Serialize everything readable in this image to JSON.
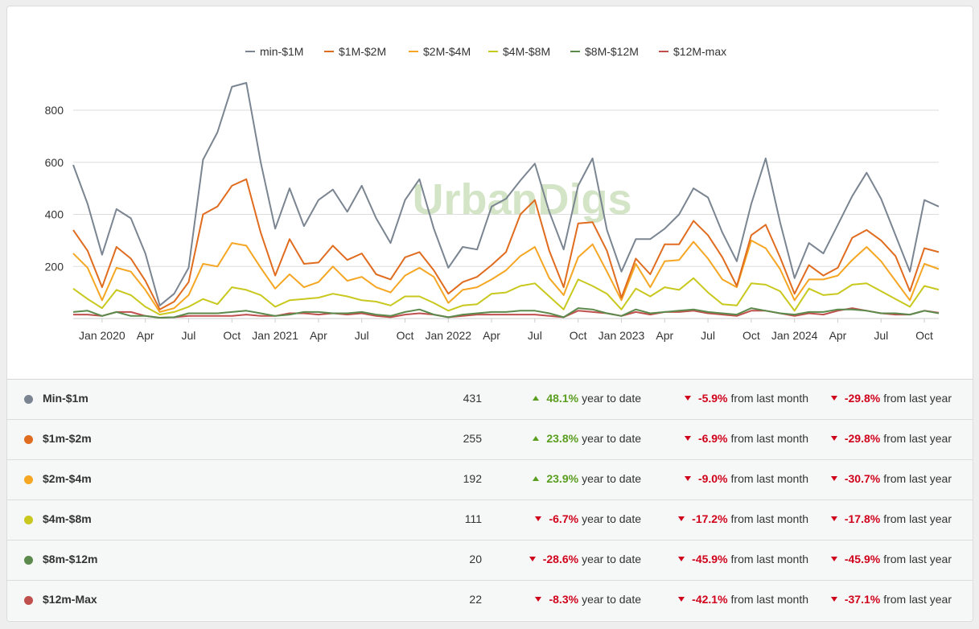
{
  "chart_data": {
    "type": "line",
    "watermark": "UrbanDigs",
    "x": [
      "2019-11",
      "2019-12",
      "2020-01",
      "2020-02",
      "2020-03",
      "2020-04",
      "2020-05",
      "2020-06",
      "2020-07",
      "2020-08",
      "2020-09",
      "2020-10",
      "2020-11",
      "2020-12",
      "2021-01",
      "2021-02",
      "2021-03",
      "2021-04",
      "2021-05",
      "2021-06",
      "2021-07",
      "2021-08",
      "2021-09",
      "2021-10",
      "2021-11",
      "2021-12",
      "2022-01",
      "2022-02",
      "2022-03",
      "2022-04",
      "2022-05",
      "2022-06",
      "2022-07",
      "2022-08",
      "2022-09",
      "2022-10",
      "2022-11",
      "2022-12",
      "2023-01",
      "2023-02",
      "2023-03",
      "2023-04",
      "2023-05",
      "2023-06",
      "2023-07",
      "2023-08",
      "2023-09",
      "2023-10",
      "2023-11",
      "2023-12",
      "2024-01",
      "2024-02",
      "2024-03",
      "2024-04",
      "2024-05",
      "2024-06",
      "2024-07",
      "2024-08",
      "2024-09",
      "2024-10",
      "2024-11"
    ],
    "x_ticks": [
      "Jan 2020",
      "Apr",
      "Jul",
      "Oct",
      "Jan 2021",
      "Apr",
      "Jul",
      "Oct",
      "Jan 2022",
      "Apr",
      "Jul",
      "Oct",
      "Jan 2023",
      "Apr",
      "Jul",
      "Oct",
      "Jan 2024",
      "Apr",
      "Jul",
      "Oct"
    ],
    "y_ticks": [
      200,
      400,
      600,
      800
    ],
    "ylim": [
      0,
      900
    ],
    "legend_position": "top",
    "series": [
      {
        "name": "min-$1M",
        "color": "#7a8591",
        "values": [
          590,
          440,
          245,
          420,
          385,
          250,
          50,
          95,
          195,
          610,
          715,
          890,
          905,
          600,
          345,
          500,
          355,
          455,
          495,
          410,
          510,
          385,
          290,
          455,
          535,
          345,
          195,
          275,
          265,
          430,
          460,
          530,
          595,
          410,
          265,
          510,
          615,
          340,
          180,
          305,
          305,
          345,
          400,
          500,
          465,
          330,
          220,
          440,
          615,
          370,
          155,
          290,
          250,
          360,
          470,
          560,
          460,
          320,
          180,
          455,
          430
        ]
      },
      {
        "name": "$1M-$2M",
        "color": "#e06c1f",
        "values": [
          340,
          260,
          120,
          275,
          230,
          145,
          35,
          65,
          140,
          400,
          430,
          510,
          535,
          330,
          165,
          305,
          210,
          215,
          280,
          225,
          250,
          170,
          150,
          235,
          255,
          185,
          95,
          140,
          160,
          205,
          255,
          400,
          455,
          260,
          120,
          365,
          370,
          260,
          80,
          230,
          170,
          285,
          285,
          375,
          320,
          235,
          125,
          320,
          360,
          235,
          95,
          205,
          165,
          195,
          310,
          340,
          300,
          240,
          105,
          270,
          255
        ]
      },
      {
        "name": "$2M-$4M",
        "color": "#f5a623",
        "values": [
          250,
          195,
          70,
          195,
          180,
          110,
          25,
          40,
          90,
          210,
          200,
          290,
          280,
          195,
          115,
          170,
          120,
          140,
          200,
          145,
          160,
          120,
          100,
          165,
          195,
          160,
          60,
          110,
          120,
          150,
          185,
          240,
          275,
          155,
          90,
          235,
          285,
          180,
          70,
          210,
          120,
          220,
          225,
          295,
          230,
          150,
          120,
          300,
          270,
          190,
          70,
          150,
          150,
          165,
          225,
          275,
          220,
          145,
          70,
          210,
          190
        ]
      },
      {
        "name": "$4M-$8M",
        "color": "#c8c81e",
        "values": [
          115,
          75,
          40,
          110,
          90,
          45,
          15,
          25,
          45,
          75,
          55,
          120,
          110,
          90,
          45,
          70,
          75,
          80,
          95,
          85,
          70,
          65,
          50,
          85,
          85,
          60,
          30,
          50,
          55,
          95,
          100,
          125,
          135,
          85,
          35,
          150,
          125,
          95,
          35,
          115,
          85,
          120,
          110,
          155,
          100,
          55,
          50,
          135,
          130,
          105,
          30,
          115,
          90,
          95,
          130,
          135,
          105,
          75,
          45,
          125,
          111
        ]
      },
      {
        "name": "$8M-$12M",
        "color": "#5b8a4c",
        "values": [
          25,
          30,
          10,
          25,
          10,
          10,
          3,
          5,
          20,
          20,
          20,
          25,
          30,
          20,
          10,
          15,
          25,
          25,
          20,
          20,
          25,
          15,
          10,
          25,
          35,
          15,
          5,
          15,
          20,
          25,
          25,
          30,
          30,
          20,
          5,
          40,
          35,
          20,
          10,
          35,
          20,
          25,
          30,
          35,
          25,
          20,
          15,
          40,
          30,
          20,
          15,
          25,
          25,
          35,
          35,
          30,
          20,
          20,
          15,
          30,
          20
        ]
      },
      {
        "name": "$12M-max",
        "color": "#c0504d",
        "values": [
          15,
          15,
          10,
          25,
          25,
          10,
          3,
          5,
          10,
          10,
          10,
          10,
          15,
          10,
          10,
          20,
          20,
          15,
          20,
          15,
          20,
          10,
          5,
          15,
          20,
          15,
          5,
          10,
          15,
          15,
          15,
          15,
          15,
          10,
          5,
          30,
          25,
          20,
          10,
          25,
          15,
          25,
          25,
          30,
          20,
          15,
          10,
          30,
          30,
          20,
          10,
          20,
          15,
          30,
          40,
          30,
          20,
          15,
          15,
          30,
          22
        ]
      }
    ]
  },
  "rows": [
    {
      "name": "Min-$1m",
      "color": "#7a8591",
      "value": "431",
      "ytd": {
        "dir": "up",
        "pct": "48.1%",
        "label": "year to date"
      },
      "mom": {
        "dir": "down",
        "pct": "-5.9%",
        "label": "from last month"
      },
      "yoy": {
        "dir": "down",
        "pct": "-29.8%",
        "label": "from last year"
      }
    },
    {
      "name": "$1m-$2m",
      "color": "#e06c1f",
      "value": "255",
      "ytd": {
        "dir": "up",
        "pct": "23.8%",
        "label": "year to date"
      },
      "mom": {
        "dir": "down",
        "pct": "-6.9%",
        "label": "from last month"
      },
      "yoy": {
        "dir": "down",
        "pct": "-29.8%",
        "label": "from last year"
      }
    },
    {
      "name": "$2m-$4m",
      "color": "#f5a623",
      "value": "192",
      "ytd": {
        "dir": "up",
        "pct": "23.9%",
        "label": "year to date"
      },
      "mom": {
        "dir": "down",
        "pct": "-9.0%",
        "label": "from last month"
      },
      "yoy": {
        "dir": "down",
        "pct": "-30.7%",
        "label": "from last year"
      }
    },
    {
      "name": "$4m-$8m",
      "color": "#c8c81e",
      "value": "111",
      "ytd": {
        "dir": "down",
        "pct": "-6.7%",
        "label": "year to date"
      },
      "mom": {
        "dir": "down",
        "pct": "-17.2%",
        "label": "from last month"
      },
      "yoy": {
        "dir": "down",
        "pct": "-17.8%",
        "label": "from last year"
      }
    },
    {
      "name": "$8m-$12m",
      "color": "#5b8a4c",
      "value": "20",
      "ytd": {
        "dir": "down",
        "pct": "-28.6%",
        "label": "year to date"
      },
      "mom": {
        "dir": "down",
        "pct": "-45.9%",
        "label": "from last month"
      },
      "yoy": {
        "dir": "down",
        "pct": "-45.9%",
        "label": "from last year"
      }
    },
    {
      "name": "$12m-Max",
      "color": "#c0504d",
      "value": "22",
      "ytd": {
        "dir": "down",
        "pct": "-8.3%",
        "label": "year to date"
      },
      "mom": {
        "dir": "down",
        "pct": "-42.1%",
        "label": "from last month"
      },
      "yoy": {
        "dir": "down",
        "pct": "-37.1%",
        "label": "from last year"
      }
    }
  ]
}
